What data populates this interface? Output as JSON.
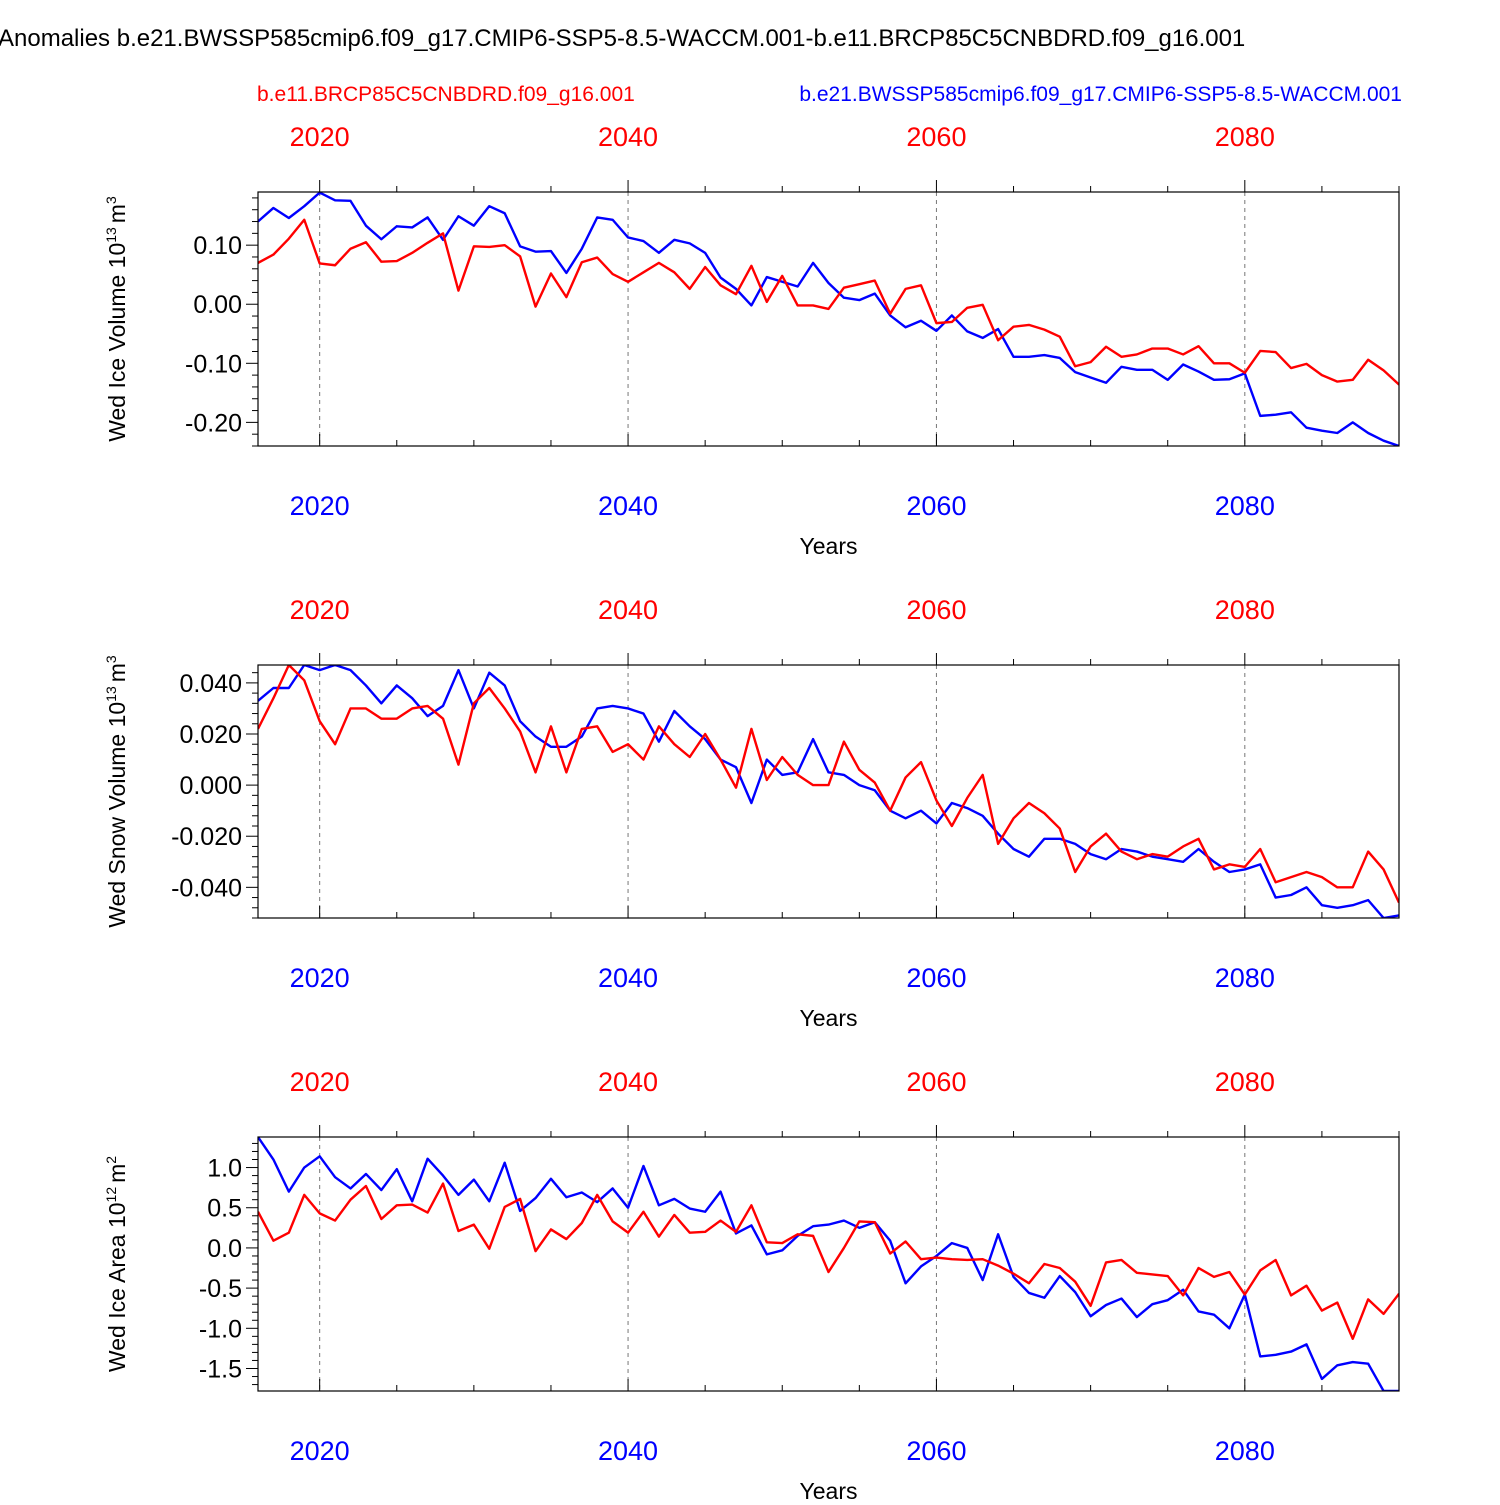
{
  "header": {
    "title": "Anomalies b.e21.BWSSP585cmip6.f09_g17.CMIP6-SSP5-8.5-WACCM.001-b.e11.BRCP85C5CNBDRD.f09_g16.001",
    "legend_red": "b.e11.BRCP85C5CNBDRD.f09_g16.001",
    "legend_blue": "b.e21.BWSSP585cmip6.f09_g17.CMIP6-SSP5-8.5-WACCM.001"
  },
  "colors": {
    "red_series": "#ff0000",
    "blue_series": "#0000ff",
    "axis": "#000000",
    "grid": "#777777"
  },
  "chart_data": [
    {
      "type": "line",
      "title": "",
      "xlabel": "Years",
      "ylabel": "Wed Ice Volume 10",
      "ylabel_exp": "13",
      "ylabel_unit": "m",
      "ylabel_unit_exp": "3",
      "xlim": [
        2016,
        2090
      ],
      "ylim": [
        -0.24,
        0.19
      ],
      "xticks": [
        2020,
        2040,
        2060,
        2080
      ],
      "xtick_labels": [
        "2020",
        "2040",
        "2060",
        "2080"
      ],
      "yticks": [
        0.1,
        0.0,
        -0.1,
        -0.2
      ],
      "ytick_labels": [
        "0.10",
        "0.00",
        "-0.10",
        "-0.20"
      ],
      "x": [
        2016,
        2017,
        2018,
        2019,
        2020,
        2021,
        2022,
        2023,
        2024,
        2025,
        2026,
        2027,
        2028,
        2029,
        2030,
        2031,
        2032,
        2033,
        2034,
        2035,
        2036,
        2037,
        2038,
        2039,
        2040,
        2041,
        2042,
        2043,
        2044,
        2045,
        2046,
        2047,
        2048,
        2049,
        2050,
        2051,
        2052,
        2053,
        2054,
        2055,
        2056,
        2057,
        2058,
        2059,
        2060,
        2061,
        2062,
        2063,
        2064,
        2065,
        2066,
        2067,
        2068,
        2069,
        2070,
        2071,
        2072,
        2073,
        2074,
        2075,
        2076,
        2077,
        2078,
        2079,
        2080,
        2081,
        2082,
        2083,
        2084,
        2085,
        2086,
        2087,
        2088,
        2089,
        2090
      ],
      "series": [
        {
          "name": "b.e21.BWSSP585cmip6.f09_g17.CMIP6-SSP5-8.5-WACCM.001",
          "color": "#0000ff",
          "values": [
            0.14,
            0.163,
            0.146,
            0.166,
            0.189,
            0.176,
            0.175,
            0.133,
            0.11,
            0.132,
            0.13,
            0.147,
            0.109,
            0.149,
            0.133,
            0.166,
            0.154,
            0.098,
            0.089,
            0.09,
            0.053,
            0.094,
            0.147,
            0.143,
            0.113,
            0.107,
            0.087,
            0.109,
            0.103,
            0.087,
            0.045,
            0.026,
            -0.002,
            0.046,
            0.038,
            0.03,
            0.07,
            0.036,
            0.011,
            0.007,
            0.018,
            -0.019,
            -0.039,
            -0.028,
            -0.045,
            -0.019,
            -0.046,
            -0.057,
            -0.042,
            -0.089,
            -0.089,
            -0.086,
            -0.091,
            -0.115,
            -0.124,
            -0.133,
            -0.106,
            -0.111,
            -0.111,
            -0.128,
            -0.102,
            -0.114,
            -0.128,
            -0.127,
            -0.117,
            -0.189,
            -0.187,
            -0.183,
            -0.209,
            -0.214,
            -0.218,
            -0.2,
            -0.218,
            -0.231,
            -0.24
          ]
        },
        {
          "name": "b.e11.BRCP85C5CNBDRD.f09_g16.001",
          "color": "#ff0000",
          "values": [
            0.07,
            0.084,
            0.111,
            0.143,
            0.069,
            0.066,
            0.094,
            0.105,
            0.072,
            0.073,
            0.087,
            0.104,
            0.12,
            0.023,
            0.098,
            0.097,
            0.1,
            0.081,
            -0.004,
            0.052,
            0.012,
            0.071,
            0.079,
            0.051,
            0.038,
            0.054,
            0.07,
            0.054,
            0.026,
            0.063,
            0.032,
            0.017,
            0.065,
            0.004,
            0.048,
            -0.002,
            -0.002,
            -0.008,
            0.028,
            0.034,
            0.04,
            -0.016,
            0.026,
            0.032,
            -0.032,
            -0.03,
            -0.006,
            -0.001,
            -0.061,
            -0.038,
            -0.035,
            -0.043,
            -0.055,
            -0.105,
            -0.098,
            -0.072,
            -0.089,
            -0.085,
            -0.075,
            -0.075,
            -0.085,
            -0.071,
            -0.1,
            -0.1,
            -0.116,
            -0.079,
            -0.081,
            -0.108,
            -0.101,
            -0.12,
            -0.131,
            -0.128,
            -0.094,
            -0.112,
            -0.136
          ]
        }
      ]
    },
    {
      "type": "line",
      "title": "",
      "xlabel": "Years",
      "ylabel": "Wed Snow Volume 10",
      "ylabel_exp": "13",
      "ylabel_unit": "m",
      "ylabel_unit_exp": "3",
      "xlim": [
        2016,
        2090
      ],
      "ylim": [
        -0.052,
        0.047
      ],
      "xticks": [
        2020,
        2040,
        2060,
        2080
      ],
      "xtick_labels": [
        "2020",
        "2040",
        "2060",
        "2080"
      ],
      "yticks": [
        0.04,
        0.02,
        0.0,
        -0.02,
        -0.04
      ],
      "ytick_labels": [
        "0.040",
        "0.020",
        "0.000",
        "-0.020",
        "-0.040"
      ],
      "x": [
        2016,
        2017,
        2018,
        2019,
        2020,
        2021,
        2022,
        2023,
        2024,
        2025,
        2026,
        2027,
        2028,
        2029,
        2030,
        2031,
        2032,
        2033,
        2034,
        2035,
        2036,
        2037,
        2038,
        2039,
        2040,
        2041,
        2042,
        2043,
        2044,
        2045,
        2046,
        2047,
        2048,
        2049,
        2050,
        2051,
        2052,
        2053,
        2054,
        2055,
        2056,
        2057,
        2058,
        2059,
        2060,
        2061,
        2062,
        2063,
        2064,
        2065,
        2066,
        2067,
        2068,
        2069,
        2070,
        2071,
        2072,
        2073,
        2074,
        2075,
        2076,
        2077,
        2078,
        2079,
        2080,
        2081,
        2082,
        2083,
        2084,
        2085,
        2086,
        2087,
        2088,
        2089,
        2090
      ],
      "series": [
        {
          "name": "b.e21.BWSSP585cmip6.f09_g17.CMIP6-SSP5-8.5-WACCM.001",
          "color": "#0000ff",
          "values": [
            0.033,
            0.038,
            0.038,
            0.047,
            0.045,
            0.047,
            0.045,
            0.039,
            0.032,
            0.039,
            0.034,
            0.027,
            0.031,
            0.045,
            0.03,
            0.044,
            0.039,
            0.025,
            0.019,
            0.015,
            0.015,
            0.019,
            0.03,
            0.031,
            0.03,
            0.028,
            0.017,
            0.029,
            0.023,
            0.018,
            0.01,
            0.007,
            -0.007,
            0.01,
            0.004,
            0.005,
            0.018,
            0.005,
            0.004,
            0.0,
            -0.002,
            -0.01,
            -0.013,
            -0.01,
            -0.015,
            -0.007,
            -0.009,
            -0.012,
            -0.019,
            -0.025,
            -0.028,
            -0.021,
            -0.021,
            -0.023,
            -0.027,
            -0.029,
            -0.025,
            -0.026,
            -0.028,
            -0.029,
            -0.03,
            -0.025,
            -0.03,
            -0.034,
            -0.033,
            -0.031,
            -0.044,
            -0.043,
            -0.04,
            -0.047,
            -0.048,
            -0.047,
            -0.045,
            -0.052,
            -0.051
          ]
        },
        {
          "name": "b.e11.BRCP85C5CNBDRD.f09_g16.001",
          "color": "#ff0000",
          "values": [
            0.022,
            0.034,
            0.047,
            0.041,
            0.025,
            0.016,
            0.03,
            0.03,
            0.026,
            0.026,
            0.03,
            0.031,
            0.026,
            0.008,
            0.032,
            0.038,
            0.03,
            0.021,
            0.005,
            0.023,
            0.005,
            0.022,
            0.023,
            0.013,
            0.016,
            0.01,
            0.023,
            0.016,
            0.011,
            0.02,
            0.01,
            -0.001,
            0.022,
            0.002,
            0.011,
            0.004,
            0.0,
            0.0,
            0.017,
            0.006,
            0.001,
            -0.01,
            0.003,
            0.009,
            -0.006,
            -0.016,
            -0.005,
            0.004,
            -0.023,
            -0.013,
            -0.007,
            -0.011,
            -0.017,
            -0.034,
            -0.024,
            -0.019,
            -0.026,
            -0.029,
            -0.027,
            -0.028,
            -0.024,
            -0.021,
            -0.033,
            -0.031,
            -0.032,
            -0.025,
            -0.038,
            -0.036,
            -0.034,
            -0.036,
            -0.04,
            -0.04,
            -0.026,
            -0.033,
            -0.046
          ]
        }
      ]
    },
    {
      "type": "line",
      "title": "",
      "xlabel": "Years",
      "ylabel": "Wed Ice Area 10",
      "ylabel_exp": "12",
      "ylabel_unit": "m",
      "ylabel_unit_exp": "2",
      "xlim": [
        2016,
        2090
      ],
      "ylim": [
        -1.78,
        1.38
      ],
      "xticks": [
        2020,
        2040,
        2060,
        2080
      ],
      "xtick_labels": [
        "2020",
        "2040",
        "2060",
        "2080"
      ],
      "yticks": [
        1.0,
        0.5,
        0.0,
        -0.5,
        -1.0,
        -1.5
      ],
      "ytick_labels": [
        "1.0",
        "0.5",
        "0.0",
        "-0.5",
        "-1.0",
        "-1.5"
      ],
      "x": [
        2016,
        2017,
        2018,
        2019,
        2020,
        2021,
        2022,
        2023,
        2024,
        2025,
        2026,
        2027,
        2028,
        2029,
        2030,
        2031,
        2032,
        2033,
        2034,
        2035,
        2036,
        2037,
        2038,
        2039,
        2040,
        2041,
        2042,
        2043,
        2044,
        2045,
        2046,
        2047,
        2048,
        2049,
        2050,
        2051,
        2052,
        2053,
        2054,
        2055,
        2056,
        2057,
        2058,
        2059,
        2060,
        2061,
        2062,
        2063,
        2064,
        2065,
        2066,
        2067,
        2068,
        2069,
        2070,
        2071,
        2072,
        2073,
        2074,
        2075,
        2076,
        2077,
        2078,
        2079,
        2080,
        2081,
        2082,
        2083,
        2084,
        2085,
        2086,
        2087,
        2088,
        2089,
        2090
      ],
      "series": [
        {
          "name": "b.e21.BWSSP585cmip6.f09_g17.CMIP6-SSP5-8.5-WACCM.001",
          "color": "#0000ff",
          "values": [
            1.38,
            1.1,
            0.7,
            1.0,
            1.14,
            0.88,
            0.74,
            0.92,
            0.72,
            0.98,
            0.58,
            1.11,
            0.9,
            0.66,
            0.85,
            0.58,
            1.06,
            0.46,
            0.62,
            0.86,
            0.63,
            0.69,
            0.57,
            0.74,
            0.5,
            1.02,
            0.53,
            0.61,
            0.49,
            0.45,
            0.7,
            0.18,
            0.28,
            -0.08,
            -0.03,
            0.15,
            0.27,
            0.29,
            0.34,
            0.25,
            0.32,
            0.09,
            -0.44,
            -0.23,
            -0.1,
            0.06,
            0.0,
            -0.4,
            0.17,
            -0.36,
            -0.56,
            -0.62,
            -0.35,
            -0.55,
            -0.85,
            -0.71,
            -0.63,
            -0.86,
            -0.7,
            -0.65,
            -0.52,
            -0.79,
            -0.83,
            -1.0,
            -0.58,
            -1.35,
            -1.33,
            -1.29,
            -1.2,
            -1.63,
            -1.46,
            -1.42,
            -1.44,
            -1.78,
            -1.78
          ]
        },
        {
          "name": "b.e11.BRCP85C5CNBDRD.f09_g16.001",
          "color": "#ff0000",
          "values": [
            0.45,
            0.09,
            0.19,
            0.66,
            0.43,
            0.34,
            0.6,
            0.77,
            0.36,
            0.53,
            0.54,
            0.44,
            0.8,
            0.21,
            0.29,
            -0.01,
            0.51,
            0.61,
            -0.04,
            0.23,
            0.11,
            0.31,
            0.66,
            0.33,
            0.19,
            0.45,
            0.14,
            0.41,
            0.19,
            0.2,
            0.34,
            0.2,
            0.53,
            0.07,
            0.06,
            0.17,
            0.15,
            -0.3,
            0.0,
            0.33,
            0.32,
            -0.07,
            0.08,
            -0.14,
            -0.12,
            -0.14,
            -0.15,
            -0.14,
            -0.22,
            -0.32,
            -0.44,
            -0.2,
            -0.25,
            -0.42,
            -0.72,
            -0.18,
            -0.15,
            -0.31,
            -0.33,
            -0.35,
            -0.59,
            -0.25,
            -0.36,
            -0.3,
            -0.58,
            -0.28,
            -0.15,
            -0.59,
            -0.47,
            -0.78,
            -0.68,
            -1.13,
            -0.64,
            -0.82,
            -0.57
          ]
        }
      ]
    }
  ]
}
